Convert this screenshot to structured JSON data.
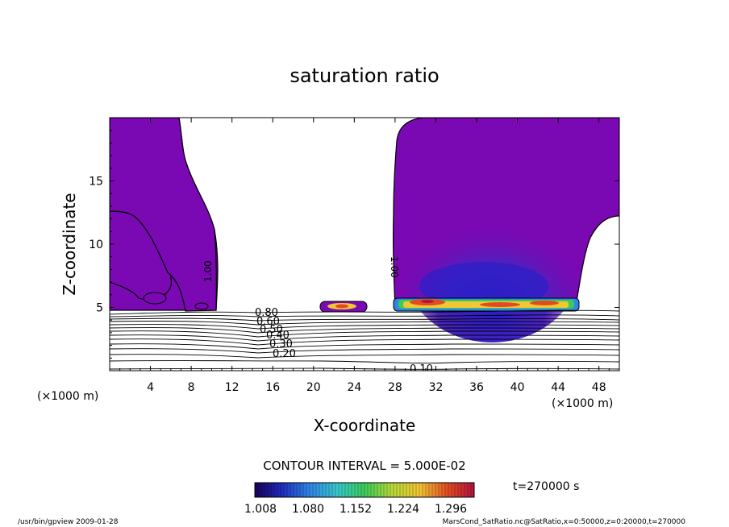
{
  "chart_data": {
    "type": "heatmap",
    "title": "saturation ratio",
    "xlabel": "X-coordinate",
    "ylabel": "Z-coordinate",
    "x_unit_left": "(×1000 m)",
    "x_unit_right": "(×1000 m)",
    "xlim": [
      0,
      50
    ],
    "ylim": [
      0,
      20
    ],
    "xticks": [
      "4",
      "8",
      "12",
      "16",
      "20",
      "24",
      "28",
      "32",
      "36",
      "40",
      "44",
      "48"
    ],
    "yticks": [
      "5",
      "10",
      "15"
    ],
    "contour_labels": [
      "1.00",
      "1.00",
      "0.80",
      "0.60",
      "0.50",
      "0.40",
      "0.30",
      "0.20",
      "0.10"
    ],
    "contour_interval_text": "CONTOUR INTERVAL = 5.000E-02",
    "time_text": "t=270000  s",
    "colorbar": {
      "ticks": [
        "1.008",
        "1.080",
        "1.152",
        "1.224",
        "1.296"
      ],
      "colors": [
        "#1a0058",
        "#1f2bbd",
        "#2f86e8",
        "#39c9c9",
        "#3acb59",
        "#b4d93a",
        "#f2c733",
        "#e24b22",
        "#b5123e"
      ]
    },
    "footer_left": "/usr/bin/gpview   2009-01-28",
    "footer_right": "MarsCond_SatRatio.nc@SatRatio,x=0:50000,z=0:20000,t=270000",
    "colors": {
      "fill_purple": "#7a08b3",
      "fill_dark": "#5a18b8"
    }
  }
}
